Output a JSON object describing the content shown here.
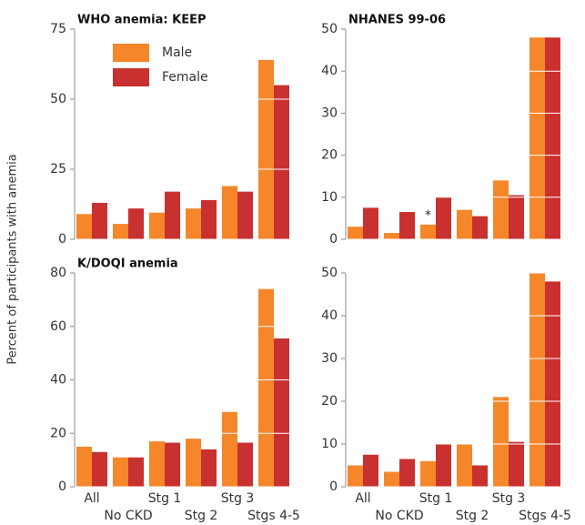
{
  "ylabel": "Percent of participants with anemia",
  "chart_data": [
    {
      "type": "bar",
      "title": "WHO anemia: KEEP",
      "ylim": [
        0,
        75
      ],
      "yticks": [
        0,
        25,
        50,
        75
      ],
      "grid": true,
      "legend": "top-left",
      "series": [
        {
          "name": "Male",
          "color": "#f5862a",
          "values": [
            9,
            5.5,
            9.5,
            11,
            19,
            64
          ]
        },
        {
          "name": "Female",
          "color": "#c8312f",
          "values": [
            13,
            11,
            17,
            14,
            17,
            55
          ]
        }
      ]
    },
    {
      "type": "bar",
      "title": "NHANES 99-06",
      "ylim": [
        0,
        50
      ],
      "yticks": [
        0,
        10,
        20,
        30,
        40,
        50
      ],
      "grid": true,
      "annotations": [
        {
          "text": "*",
          "category": 2,
          "series": 0
        }
      ],
      "series": [
        {
          "color": "#f5862a",
          "values": [
            3,
            1.5,
            3.5,
            7,
            14,
            48
          ]
        },
        {
          "color": "#c8312f",
          "values": [
            7.5,
            6.5,
            10,
            5.5,
            10.5,
            48
          ]
        }
      ]
    },
    {
      "type": "bar",
      "title": "K/DOQI anemia",
      "ylim": [
        0,
        80
      ],
      "yticks": [
        0,
        20,
        40,
        60,
        80
      ],
      "grid": true,
      "categories": [
        "All",
        "No CKD",
        "Stg 1",
        "Stg 2",
        "Stg 3",
        "Stgs 4-5"
      ],
      "series": [
        {
          "color": "#f5862a",
          "values": [
            15,
            11,
            17,
            18,
            28,
            74
          ]
        },
        {
          "color": "#c8312f",
          "values": [
            13,
            11,
            16.5,
            14,
            16.5,
            55.5
          ]
        }
      ]
    },
    {
      "type": "bar",
      "ylim": [
        0,
        50
      ],
      "yticks": [
        0,
        10,
        20,
        30,
        40,
        50
      ],
      "grid": true,
      "categories": [
        "All",
        "No CKD",
        "Stg 1",
        "Stg 2",
        "Stg 3",
        "Stgs 4-5"
      ],
      "series": [
        {
          "color": "#f5862a",
          "values": [
            5,
            3.5,
            6,
            10,
            21,
            50
          ]
        },
        {
          "color": "#c8312f",
          "values": [
            7.5,
            6.5,
            10,
            5,
            10.5,
            48
          ]
        }
      ]
    }
  ]
}
